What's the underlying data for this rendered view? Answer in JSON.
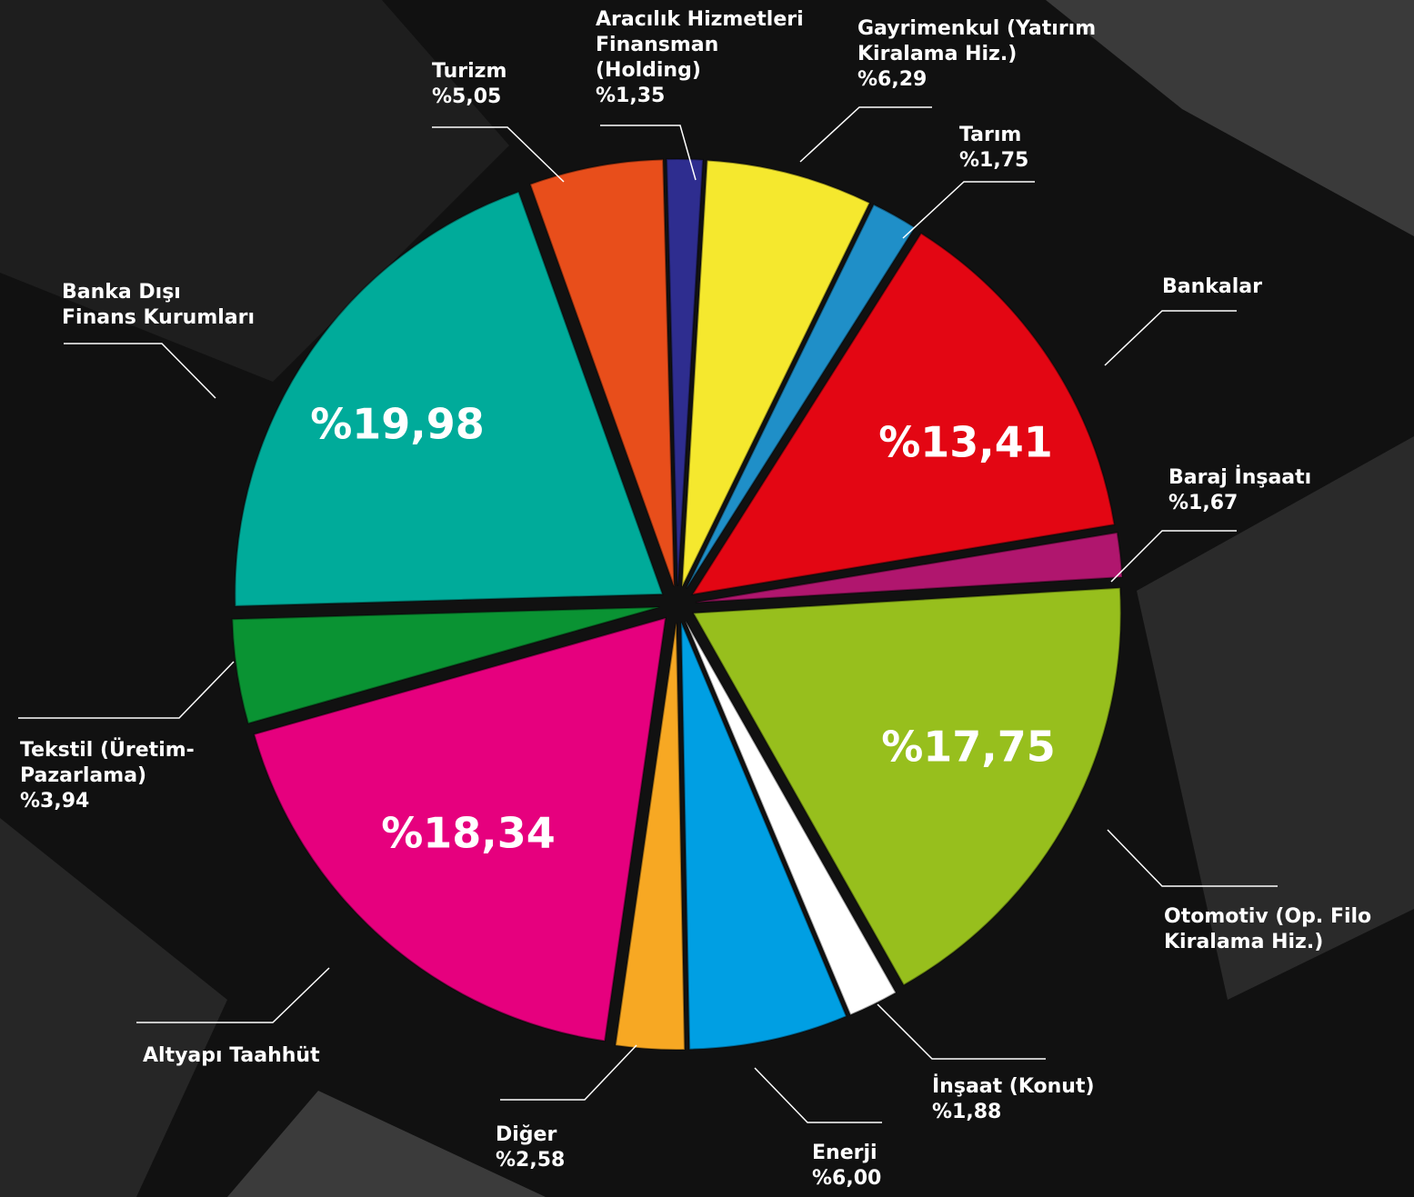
{
  "chart_data": {
    "type": "pie",
    "categories": [
      "Aracılık Hizmetleri\nFinansman\n(Holding)",
      "Gayrimenkul (Yatırım\nKiralama Hiz.)",
      "Tarım",
      "Bankalar",
      "Baraj İnşaatı",
      "Otomotiv (Op. Filo\nKiralama Hiz.)",
      "İnşaat (Konut)",
      "Enerji",
      "Diğer",
      "Altyapı Taahhüt",
      "Tekstil (Üretim-\nPazarlama)",
      "Banka Dışı\nFinans Kurumları",
      "Turizm"
    ],
    "values": [
      1.35,
      6.29,
      1.75,
      13.41,
      1.67,
      17.75,
      1.88,
      6.0,
      2.58,
      18.34,
      3.94,
      19.98,
      5.05
    ],
    "value_labels": [
      "%1,35",
      "%6,29",
      "%1,75",
      "%13,41",
      "%1,67",
      "%17,75",
      "%1,88",
      "%6,00",
      "%2,58",
      "%18,34",
      "%3,94",
      "%19,98",
      "%5,05"
    ],
    "colors": [
      "#2e2d8f",
      "#f5e82e",
      "#1f8fc8",
      "#e30613",
      "#b0166e",
      "#97bf1d",
      "#ffffff",
      "#009fe3",
      "#f7a823",
      "#e6007e",
      "#0a9333",
      "#00ab9a",
      "#e84e1b"
    ]
  }
}
